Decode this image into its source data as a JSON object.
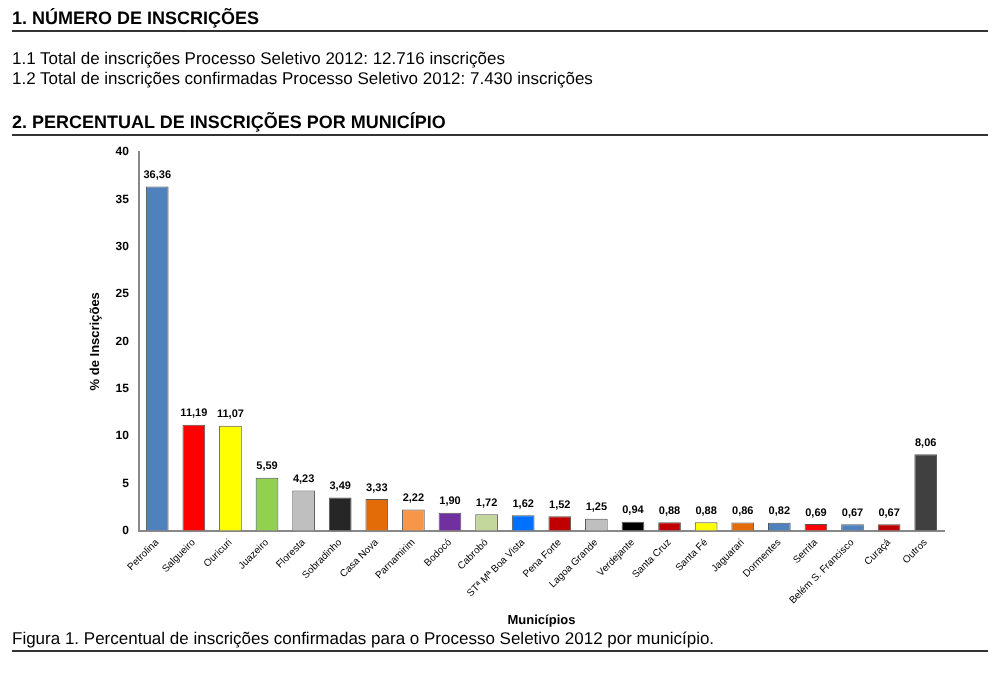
{
  "chart_data": {
    "type": "bar",
    "title": "2. PERCENTUAL DE INSCRIÇÕES POR MUNICÍPIO",
    "annotations": [
      "1. NÚMERO DE INSCRIÇÕES",
      "1.1  Total de inscrições Processo Seletivo 2012: 12.716 inscrições",
      "1.2  Total de inscrições confirmadas Processo Seletivo 2012: 7.430 inscrições",
      "Figura 1. Percentual de inscrições confirmadas para o Processo Seletivo 2012 por município."
    ],
    "xlabel": "Municípios",
    "ylabel": "% de Inscrições",
    "categories": [
      "Petrolina",
      "Salgueiro",
      "Ouricuri",
      "Juazeiro",
      "Floresta",
      "Sobradinho",
      "Casa Nova",
      "Parnamirim",
      "Bodocó",
      "Cabrobó",
      "STª Mª Boa Vista",
      "Pena Forte",
      "Lagoa Grande",
      "Verdejante",
      "Santa Cruz",
      "Santa Fé",
      "Jaguarari",
      "Dormentes",
      "Serrita",
      "Belém S. Francisco",
      "Curaçá",
      "Outros"
    ],
    "values": [
      36.36,
      11.19,
      11.07,
      5.59,
      4.23,
      3.49,
      3.33,
      2.22,
      1.9,
      1.72,
      1.62,
      1.52,
      1.25,
      0.94,
      0.88,
      0.88,
      0.86,
      0.82,
      0.69,
      0.67,
      0.67,
      8.06
    ],
    "value_labels": [
      "36,36",
      "11,19",
      "11,07",
      "5,59",
      "4,23",
      "3,49",
      "3,33",
      "2,22",
      "1,90",
      "1,72",
      "1,62",
      "1,52",
      "1,25",
      "0,94",
      "0,88",
      "0,88",
      "0,86",
      "0,82",
      "0,69",
      "0,67",
      "0,67",
      "8,06"
    ],
    "colors": [
      "#4f81bd",
      "#ff0000",
      "#ffff00",
      "#92d050",
      "#bfbfbf",
      "#262626",
      "#e36c09",
      "#f79646",
      "#7030a0",
      "#c3d69b",
      "#0070ff",
      "#c00000",
      "#bfbfbf",
      "#000000",
      "#c00000",
      "#ffff00",
      "#e36c09",
      "#4f81bd",
      "#ff0000",
      "#4f81bd",
      "#c00000",
      "#404040"
    ],
    "ylim": [
      0,
      40
    ],
    "yticks": [
      0,
      5,
      10,
      15,
      20,
      25,
      30,
      35,
      40
    ],
    "grid": false,
    "legend": false
  }
}
